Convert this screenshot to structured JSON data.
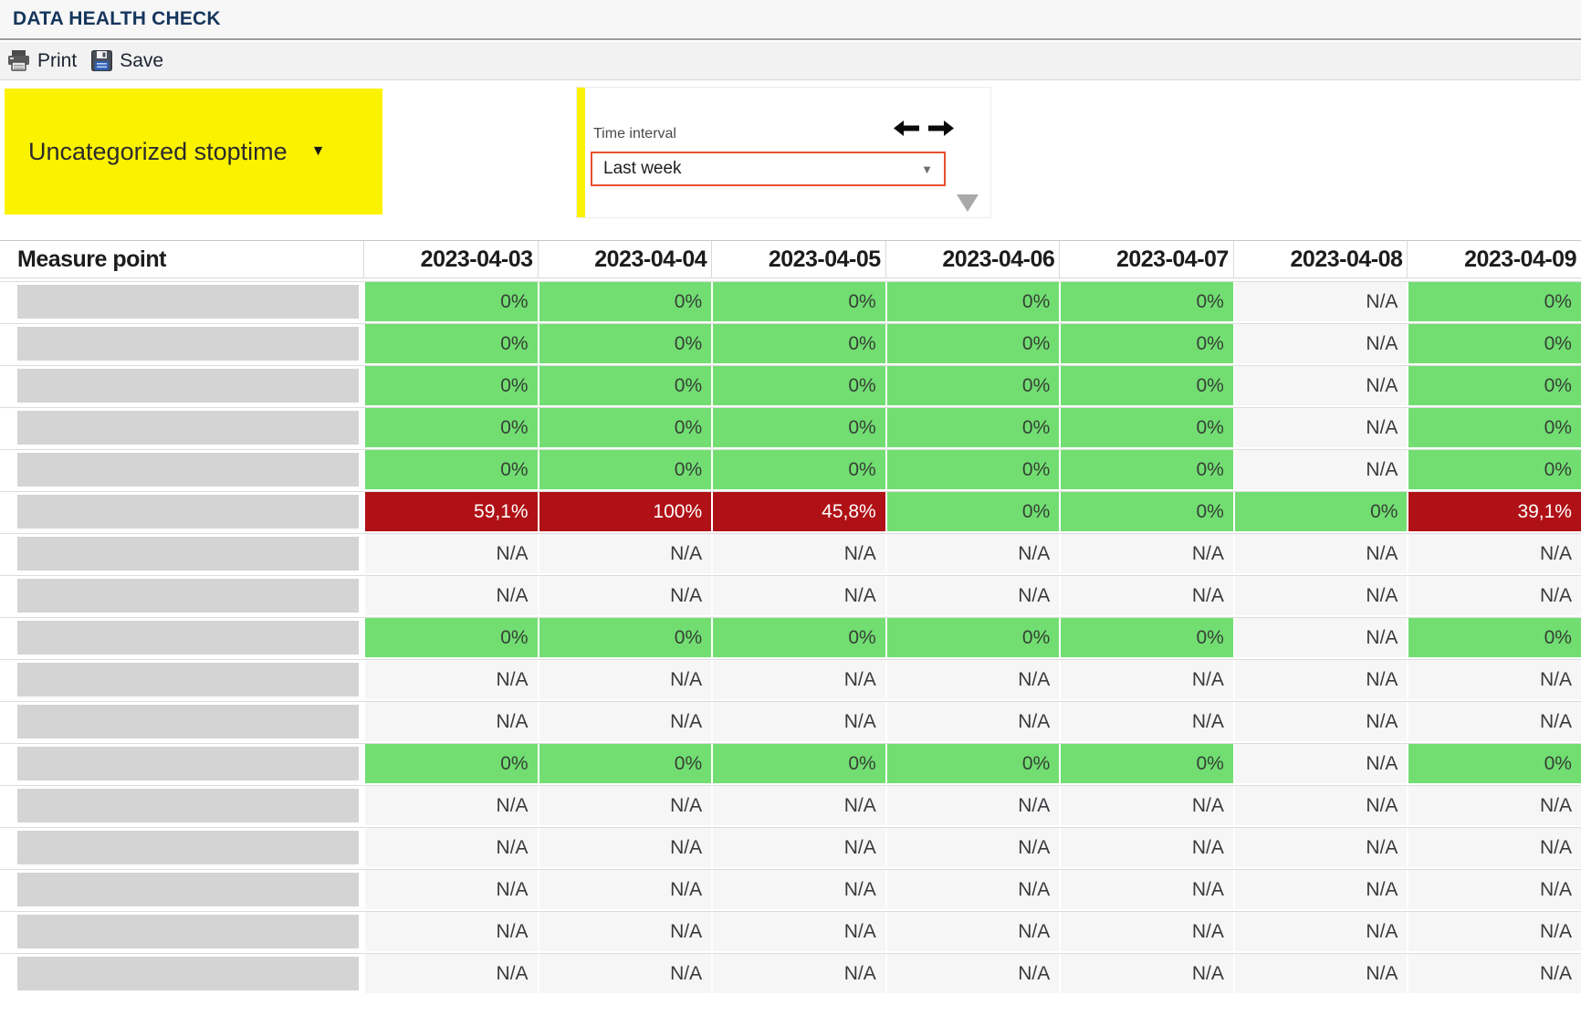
{
  "header": {
    "title": "DATA HEALTH CHECK"
  },
  "toolbar": {
    "print_label": "Print",
    "save_label": "Save",
    "icons": [
      "printer-icon",
      "floppy-disk-icon"
    ]
  },
  "filters": {
    "category": {
      "label": "Uncategorized stoptime",
      "caret": "▼"
    },
    "time_interval": {
      "label": "Time interval",
      "selected_value": "Last week",
      "select_caret": "▼",
      "nav_icons": [
        "left-arrow-icon",
        "right-arrow-icon"
      ],
      "collapse_icon": "down-triangle-icon"
    }
  },
  "table": {
    "measure_header": "Measure point",
    "columns": [
      "2023-04-03",
      "2023-04-04",
      "2023-04-05",
      "2023-04-06",
      "2023-04-07",
      "2023-04-08",
      "2023-04-09"
    ],
    "rows": [
      [
        {
          "v": "0%",
          "s": "ok"
        },
        {
          "v": "0%",
          "s": "ok"
        },
        {
          "v": "0%",
          "s": "ok"
        },
        {
          "v": "0%",
          "s": "ok"
        },
        {
          "v": "0%",
          "s": "ok"
        },
        {
          "v": "N/A",
          "s": "na"
        },
        {
          "v": "0%",
          "s": "ok"
        }
      ],
      [
        {
          "v": "0%",
          "s": "ok"
        },
        {
          "v": "0%",
          "s": "ok"
        },
        {
          "v": "0%",
          "s": "ok"
        },
        {
          "v": "0%",
          "s": "ok"
        },
        {
          "v": "0%",
          "s": "ok"
        },
        {
          "v": "N/A",
          "s": "na"
        },
        {
          "v": "0%",
          "s": "ok"
        }
      ],
      [
        {
          "v": "0%",
          "s": "ok"
        },
        {
          "v": "0%",
          "s": "ok"
        },
        {
          "v": "0%",
          "s": "ok"
        },
        {
          "v": "0%",
          "s": "ok"
        },
        {
          "v": "0%",
          "s": "ok"
        },
        {
          "v": "N/A",
          "s": "na"
        },
        {
          "v": "0%",
          "s": "ok"
        }
      ],
      [
        {
          "v": "0%",
          "s": "ok"
        },
        {
          "v": "0%",
          "s": "ok"
        },
        {
          "v": "0%",
          "s": "ok"
        },
        {
          "v": "0%",
          "s": "ok"
        },
        {
          "v": "0%",
          "s": "ok"
        },
        {
          "v": "N/A",
          "s": "na"
        },
        {
          "v": "0%",
          "s": "ok"
        }
      ],
      [
        {
          "v": "0%",
          "s": "ok"
        },
        {
          "v": "0%",
          "s": "ok"
        },
        {
          "v": "0%",
          "s": "ok"
        },
        {
          "v": "0%",
          "s": "ok"
        },
        {
          "v": "0%",
          "s": "ok"
        },
        {
          "v": "N/A",
          "s": "na"
        },
        {
          "v": "0%",
          "s": "ok"
        }
      ],
      [
        {
          "v": "59,1%",
          "s": "alert"
        },
        {
          "v": "100%",
          "s": "alert"
        },
        {
          "v": "45,8%",
          "s": "alert"
        },
        {
          "v": "0%",
          "s": "ok"
        },
        {
          "v": "0%",
          "s": "ok"
        },
        {
          "v": "0%",
          "s": "ok"
        },
        {
          "v": "39,1%",
          "s": "alert"
        }
      ],
      [
        {
          "v": "N/A",
          "s": "na"
        },
        {
          "v": "N/A",
          "s": "na"
        },
        {
          "v": "N/A",
          "s": "na"
        },
        {
          "v": "N/A",
          "s": "na"
        },
        {
          "v": "N/A",
          "s": "na"
        },
        {
          "v": "N/A",
          "s": "na"
        },
        {
          "v": "N/A",
          "s": "na"
        }
      ],
      [
        {
          "v": "N/A",
          "s": "na"
        },
        {
          "v": "N/A",
          "s": "na"
        },
        {
          "v": "N/A",
          "s": "na"
        },
        {
          "v": "N/A",
          "s": "na"
        },
        {
          "v": "N/A",
          "s": "na"
        },
        {
          "v": "N/A",
          "s": "na"
        },
        {
          "v": "N/A",
          "s": "na"
        }
      ],
      [
        {
          "v": "0%",
          "s": "ok"
        },
        {
          "v": "0%",
          "s": "ok"
        },
        {
          "v": "0%",
          "s": "ok"
        },
        {
          "v": "0%",
          "s": "ok"
        },
        {
          "v": "0%",
          "s": "ok"
        },
        {
          "v": "N/A",
          "s": "na"
        },
        {
          "v": "0%",
          "s": "ok"
        }
      ],
      [
        {
          "v": "N/A",
          "s": "na"
        },
        {
          "v": "N/A",
          "s": "na"
        },
        {
          "v": "N/A",
          "s": "na"
        },
        {
          "v": "N/A",
          "s": "na"
        },
        {
          "v": "N/A",
          "s": "na"
        },
        {
          "v": "N/A",
          "s": "na"
        },
        {
          "v": "N/A",
          "s": "na"
        }
      ],
      [
        {
          "v": "N/A",
          "s": "na"
        },
        {
          "v": "N/A",
          "s": "na"
        },
        {
          "v": "N/A",
          "s": "na"
        },
        {
          "v": "N/A",
          "s": "na"
        },
        {
          "v": "N/A",
          "s": "na"
        },
        {
          "v": "N/A",
          "s": "na"
        },
        {
          "v": "N/A",
          "s": "na"
        }
      ],
      [
        {
          "v": "0%",
          "s": "ok"
        },
        {
          "v": "0%",
          "s": "ok"
        },
        {
          "v": "0%",
          "s": "ok"
        },
        {
          "v": "0%",
          "s": "ok"
        },
        {
          "v": "0%",
          "s": "ok"
        },
        {
          "v": "N/A",
          "s": "na"
        },
        {
          "v": "0%",
          "s": "ok"
        }
      ],
      [
        {
          "v": "N/A",
          "s": "na"
        },
        {
          "v": "N/A",
          "s": "na"
        },
        {
          "v": "N/A",
          "s": "na"
        },
        {
          "v": "N/A",
          "s": "na"
        },
        {
          "v": "N/A",
          "s": "na"
        },
        {
          "v": "N/A",
          "s": "na"
        },
        {
          "v": "N/A",
          "s": "na"
        }
      ],
      [
        {
          "v": "N/A",
          "s": "na"
        },
        {
          "v": "N/A",
          "s": "na"
        },
        {
          "v": "N/A",
          "s": "na"
        },
        {
          "v": "N/A",
          "s": "na"
        },
        {
          "v": "N/A",
          "s": "na"
        },
        {
          "v": "N/A",
          "s": "na"
        },
        {
          "v": "N/A",
          "s": "na"
        }
      ],
      [
        {
          "v": "N/A",
          "s": "na"
        },
        {
          "v": "N/A",
          "s": "na"
        },
        {
          "v": "N/A",
          "s": "na"
        },
        {
          "v": "N/A",
          "s": "na"
        },
        {
          "v": "N/A",
          "s": "na"
        },
        {
          "v": "N/A",
          "s": "na"
        },
        {
          "v": "N/A",
          "s": "na"
        }
      ],
      [
        {
          "v": "N/A",
          "s": "na"
        },
        {
          "v": "N/A",
          "s": "na"
        },
        {
          "v": "N/A",
          "s": "na"
        },
        {
          "v": "N/A",
          "s": "na"
        },
        {
          "v": "N/A",
          "s": "na"
        },
        {
          "v": "N/A",
          "s": "na"
        },
        {
          "v": "N/A",
          "s": "na"
        }
      ],
      [
        {
          "v": "N/A",
          "s": "na"
        },
        {
          "v": "N/A",
          "s": "na"
        },
        {
          "v": "N/A",
          "s": "na"
        },
        {
          "v": "N/A",
          "s": "na"
        },
        {
          "v": "N/A",
          "s": "na"
        },
        {
          "v": "N/A",
          "s": "na"
        },
        {
          "v": "N/A",
          "s": "na"
        }
      ]
    ]
  },
  "colors": {
    "ok_green": "#72DE72",
    "alert_red": "#B01116",
    "na_gray": "#F6F6F6",
    "category_yellow": "#FBF200",
    "select_border_orange": "#E8512D",
    "title_navy": "#16365C"
  }
}
